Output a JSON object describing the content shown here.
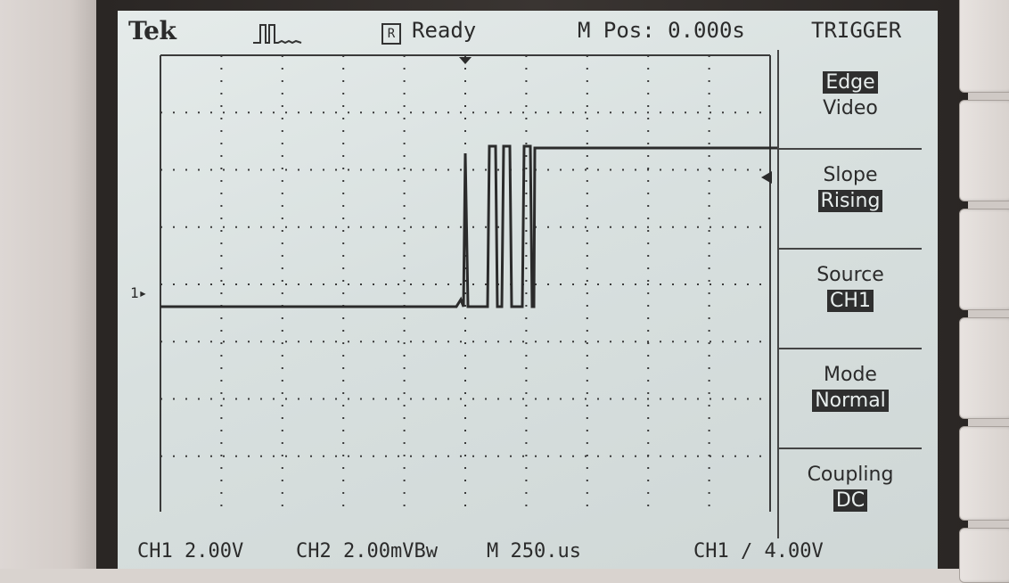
{
  "header": {
    "brand": "Tek",
    "acquire_icon": "pulse-acquire-icon",
    "run_indicator": "R",
    "status": "Ready",
    "horizontal_position": "M Pos: 0.000s",
    "menu_title": "TRIGGER"
  },
  "trace": {
    "channel_marker": "1",
    "color": "#2b2b2b"
  },
  "menu": {
    "type": {
      "option1": "Edge",
      "option2": "Video"
    },
    "slope": {
      "label": "Slope",
      "value": "Rising"
    },
    "source": {
      "label": "Source",
      "value": "CH1"
    },
    "mode": {
      "label": "Mode",
      "value": "Normal"
    },
    "coupling": {
      "label": "Coupling",
      "value": "DC"
    }
  },
  "footer": {
    "ch1_scale": "CH1  2.00V",
    "ch2_scale": "CH2  2.00mVBw",
    "timebase": "M 250.us",
    "trigger_readout": "CH1  ∕  4.00V"
  }
}
